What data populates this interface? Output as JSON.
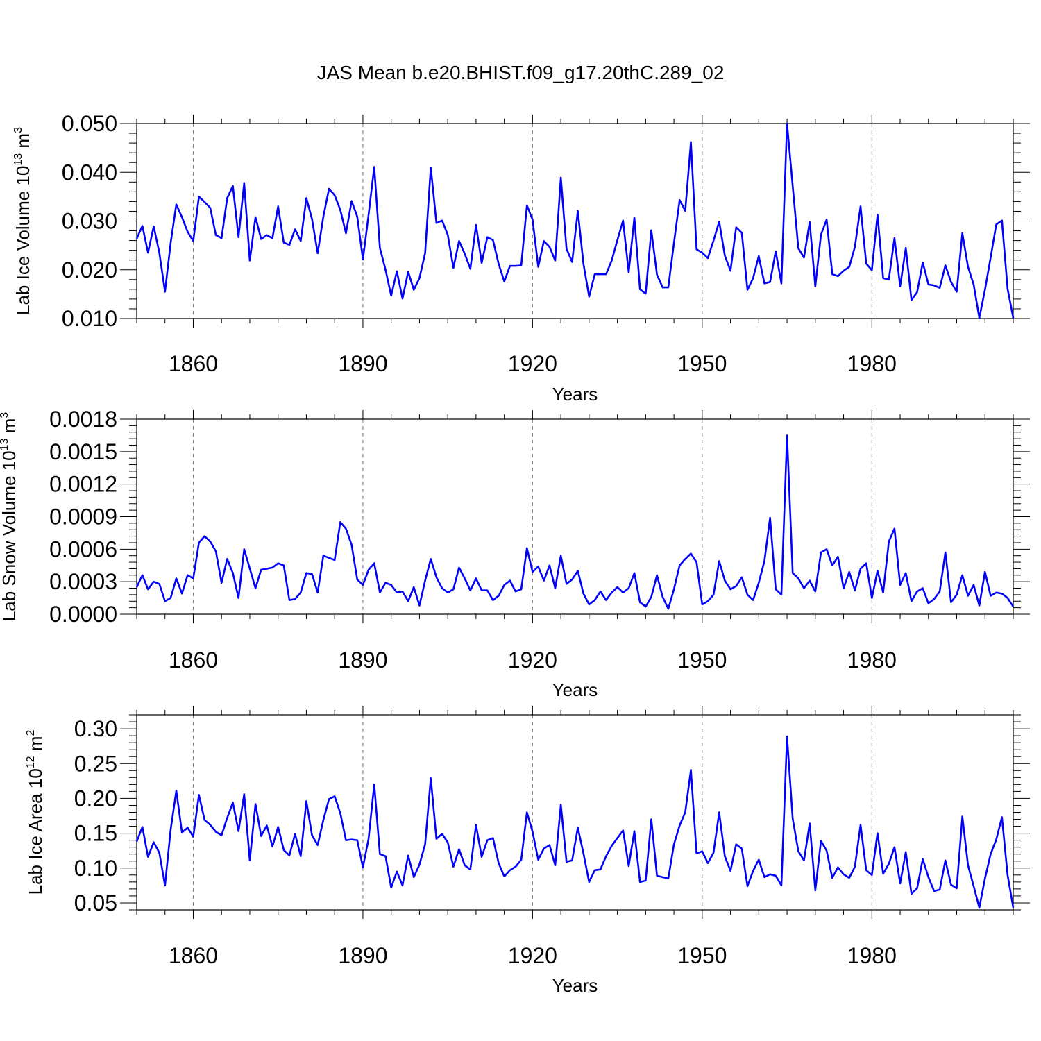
{
  "title": "JAS Mean b.e20.BHIST.f09_g17.20thC.289_02",
  "colors": {
    "line": "#0000ff",
    "grid": "#777777",
    "axis": "#000000"
  },
  "chart_data": [
    {
      "type": "line",
      "xlabel": "Years",
      "ylabel": {
        "main": "Lab Ice Volume 10",
        "exp": "13",
        "unit": " m",
        "unit_exp": "3"
      },
      "xlim": [
        1850,
        2005
      ],
      "ylim": [
        0.01,
        0.05
      ],
      "xticks": [
        1860,
        1890,
        1920,
        1950,
        1980
      ],
      "yticks": [
        0.01,
        0.02,
        0.03,
        0.04,
        0.05
      ],
      "ytick_labels": [
        "0.010",
        "0.020",
        "0.030",
        "0.040",
        "0.050"
      ],
      "grid": "vertical dashed at major x ticks",
      "x_start": 1850,
      "values": [
        0.0264,
        0.029,
        0.0235,
        0.0289,
        0.0235,
        0.0155,
        0.0255,
        0.0334,
        0.0308,
        0.0278,
        0.0259,
        0.035,
        0.0339,
        0.0327,
        0.0271,
        0.0265,
        0.0347,
        0.0372,
        0.0267,
        0.0378,
        0.0219,
        0.0308,
        0.0263,
        0.0271,
        0.0265,
        0.033,
        0.0256,
        0.0251,
        0.0283,
        0.0259,
        0.0347,
        0.0304,
        0.0234,
        0.0309,
        0.0366,
        0.0353,
        0.0323,
        0.0275,
        0.0341,
        0.0309,
        0.0221,
        0.0313,
        0.0411,
        0.0245,
        0.02,
        0.0147,
        0.0197,
        0.0141,
        0.0196,
        0.0159,
        0.0183,
        0.0234,
        0.041,
        0.0296,
        0.0301,
        0.0272,
        0.0204,
        0.0259,
        0.0233,
        0.0202,
        0.0292,
        0.0214,
        0.0267,
        0.0261,
        0.0212,
        0.0176,
        0.0208,
        0.0208,
        0.0209,
        0.0332,
        0.0303,
        0.0206,
        0.0259,
        0.0247,
        0.0219,
        0.0389,
        0.0243,
        0.0216,
        0.0321,
        0.0212,
        0.0145,
        0.0191,
        0.0191,
        0.0191,
        0.0219,
        0.0261,
        0.0301,
        0.0195,
        0.0307,
        0.016,
        0.0151,
        0.0281,
        0.019,
        0.0164,
        0.0164,
        0.0255,
        0.0343,
        0.0321,
        0.0462,
        0.0242,
        0.0235,
        0.0224,
        0.026,
        0.0299,
        0.0229,
        0.0198,
        0.0287,
        0.0276,
        0.0159,
        0.0183,
        0.0228,
        0.0172,
        0.0175,
        0.0238,
        0.0172,
        0.05,
        0.0372,
        0.0244,
        0.0225,
        0.0298,
        0.0166,
        0.0272,
        0.0303,
        0.0191,
        0.0187,
        0.0198,
        0.0206,
        0.0247,
        0.033,
        0.0213,
        0.0199,
        0.0313,
        0.0183,
        0.018,
        0.0265,
        0.0166,
        0.0245,
        0.0138,
        0.0154,
        0.0215,
        0.017,
        0.0168,
        0.0163,
        0.0209,
        0.0175,
        0.0155,
        0.0275,
        0.0206,
        0.017,
        0.0101,
        0.0159,
        0.0225,
        0.0293,
        0.0301,
        0.0161,
        0.0101
      ]
    },
    {
      "type": "line",
      "xlabel": "Years",
      "ylabel": {
        "main": "Lab Snow Volume 10",
        "exp": "13",
        "unit": " m",
        "unit_exp": "3"
      },
      "xlim": [
        1850,
        2005
      ],
      "ylim": [
        0.0,
        0.0018
      ],
      "xticks": [
        1860,
        1890,
        1920,
        1950,
        1980
      ],
      "yticks": [
        0.0,
        0.0003,
        0.0006,
        0.0009,
        0.0012,
        0.0015,
        0.0018
      ],
      "ytick_labels": [
        "0.0000",
        "0.0003",
        "0.0006",
        "0.0009",
        "0.0012",
        "0.0015",
        "0.0018"
      ],
      "grid": "vertical dashed at major x ticks",
      "x_start": 1850,
      "values": [
        0.00025,
        0.00036,
        0.00023,
        0.0003,
        0.00028,
        0.00012,
        0.00015,
        0.00033,
        0.00019,
        0.00036,
        0.00033,
        0.00066,
        0.00072,
        0.00067,
        0.00058,
        0.00029,
        0.00051,
        0.00038,
        0.00015,
        0.0006,
        0.00042,
        0.00024,
        0.00041,
        0.00042,
        0.00043,
        0.00047,
        0.00045,
        0.00013,
        0.00014,
        0.0002,
        0.00038,
        0.00037,
        0.0002,
        0.00054,
        0.00052,
        0.0005,
        0.00085,
        0.00079,
        0.00064,
        0.00032,
        0.00027,
        0.00041,
        0.00047,
        0.0002,
        0.00029,
        0.00027,
        0.0002,
        0.00021,
        0.00012,
        0.00025,
        8e-05,
        0.00031,
        0.00051,
        0.00034,
        0.00024,
        0.0002,
        0.00023,
        0.00043,
        0.00033,
        0.00022,
        0.00033,
        0.00022,
        0.00022,
        0.00013,
        0.00017,
        0.00027,
        0.00031,
        0.00021,
        0.00023,
        0.00061,
        0.00039,
        0.00044,
        0.00031,
        0.00045,
        0.00024,
        0.00054,
        0.00028,
        0.00032,
        0.0004,
        0.00019,
        9e-05,
        0.00013,
        0.00021,
        0.00013,
        0.0002,
        0.00025,
        0.0002,
        0.00024,
        0.00038,
        0.00011,
        7e-05,
        0.00016,
        0.00036,
        0.00016,
        5e-05,
        0.00023,
        0.00045,
        0.00051,
        0.00056,
        0.00048,
        9e-05,
        0.00012,
        0.00018,
        0.00049,
        0.00031,
        0.00023,
        0.00026,
        0.00034,
        0.00018,
        0.00013,
        0.00029,
        0.00049,
        0.00089,
        0.00023,
        0.00018,
        0.00165,
        0.00038,
        0.00033,
        0.00024,
        0.00031,
        0.00021,
        0.00057,
        0.0006,
        0.00045,
        0.00053,
        0.00024,
        0.00039,
        0.00022,
        0.00042,
        0.00047,
        0.00015,
        0.0004,
        0.0002,
        0.00067,
        0.00079,
        0.00027,
        0.00038,
        0.00012,
        0.00021,
        0.00024,
        0.0001,
        0.00014,
        0.00021,
        0.00057,
        0.00011,
        0.00018,
        0.00036,
        0.00017,
        0.00027,
        8e-05,
        0.00039,
        0.00017,
        0.0002,
        0.00019,
        0.00015,
        7e-05
      ]
    },
    {
      "type": "line",
      "xlabel": "Years",
      "ylabel": {
        "main": "Lab Ice Area 10",
        "exp": "12",
        "unit": " m",
        "unit_exp": "2"
      },
      "xlim": [
        1850,
        2005
      ],
      "ylim": [
        0.04,
        0.32
      ],
      "xticks": [
        1860,
        1890,
        1920,
        1950,
        1980
      ],
      "yticks": [
        0.05,
        0.1,
        0.15,
        0.2,
        0.25,
        0.3
      ],
      "ytick_labels": [
        "0.05",
        "0.10",
        "0.15",
        "0.20",
        "0.25",
        "0.30"
      ],
      "grid": "vertical dashed at major x ticks",
      "x_start": 1850,
      "values": [
        0.138,
        0.159,
        0.116,
        0.137,
        0.122,
        0.075,
        0.155,
        0.211,
        0.151,
        0.158,
        0.145,
        0.205,
        0.169,
        0.162,
        0.152,
        0.147,
        0.172,
        0.194,
        0.153,
        0.206,
        0.111,
        0.192,
        0.146,
        0.161,
        0.131,
        0.159,
        0.126,
        0.118,
        0.149,
        0.117,
        0.196,
        0.147,
        0.133,
        0.169,
        0.199,
        0.203,
        0.179,
        0.14,
        0.141,
        0.14,
        0.101,
        0.142,
        0.22,
        0.12,
        0.117,
        0.072,
        0.095,
        0.075,
        0.118,
        0.087,
        0.105,
        0.134,
        0.229,
        0.142,
        0.149,
        0.137,
        0.102,
        0.127,
        0.104,
        0.098,
        0.162,
        0.116,
        0.14,
        0.143,
        0.107,
        0.088,
        0.097,
        0.102,
        0.112,
        0.18,
        0.152,
        0.112,
        0.128,
        0.133,
        0.104,
        0.191,
        0.109,
        0.111,
        0.158,
        0.121,
        0.08,
        0.097,
        0.098,
        0.117,
        0.132,
        0.143,
        0.154,
        0.103,
        0.153,
        0.08,
        0.082,
        0.17,
        0.089,
        0.087,
        0.085,
        0.134,
        0.161,
        0.18,
        0.241,
        0.121,
        0.124,
        0.107,
        0.122,
        0.18,
        0.117,
        0.096,
        0.134,
        0.128,
        0.074,
        0.096,
        0.112,
        0.087,
        0.091,
        0.089,
        0.075,
        0.289,
        0.171,
        0.124,
        0.111,
        0.164,
        0.068,
        0.139,
        0.125,
        0.086,
        0.101,
        0.091,
        0.086,
        0.102,
        0.162,
        0.097,
        0.09,
        0.15,
        0.092,
        0.106,
        0.13,
        0.078,
        0.123,
        0.063,
        0.071,
        0.113,
        0.087,
        0.067,
        0.069,
        0.111,
        0.076,
        0.071,
        0.174,
        0.104,
        0.074,
        0.043,
        0.085,
        0.12,
        0.141,
        0.173,
        0.09,
        0.043
      ]
    }
  ]
}
